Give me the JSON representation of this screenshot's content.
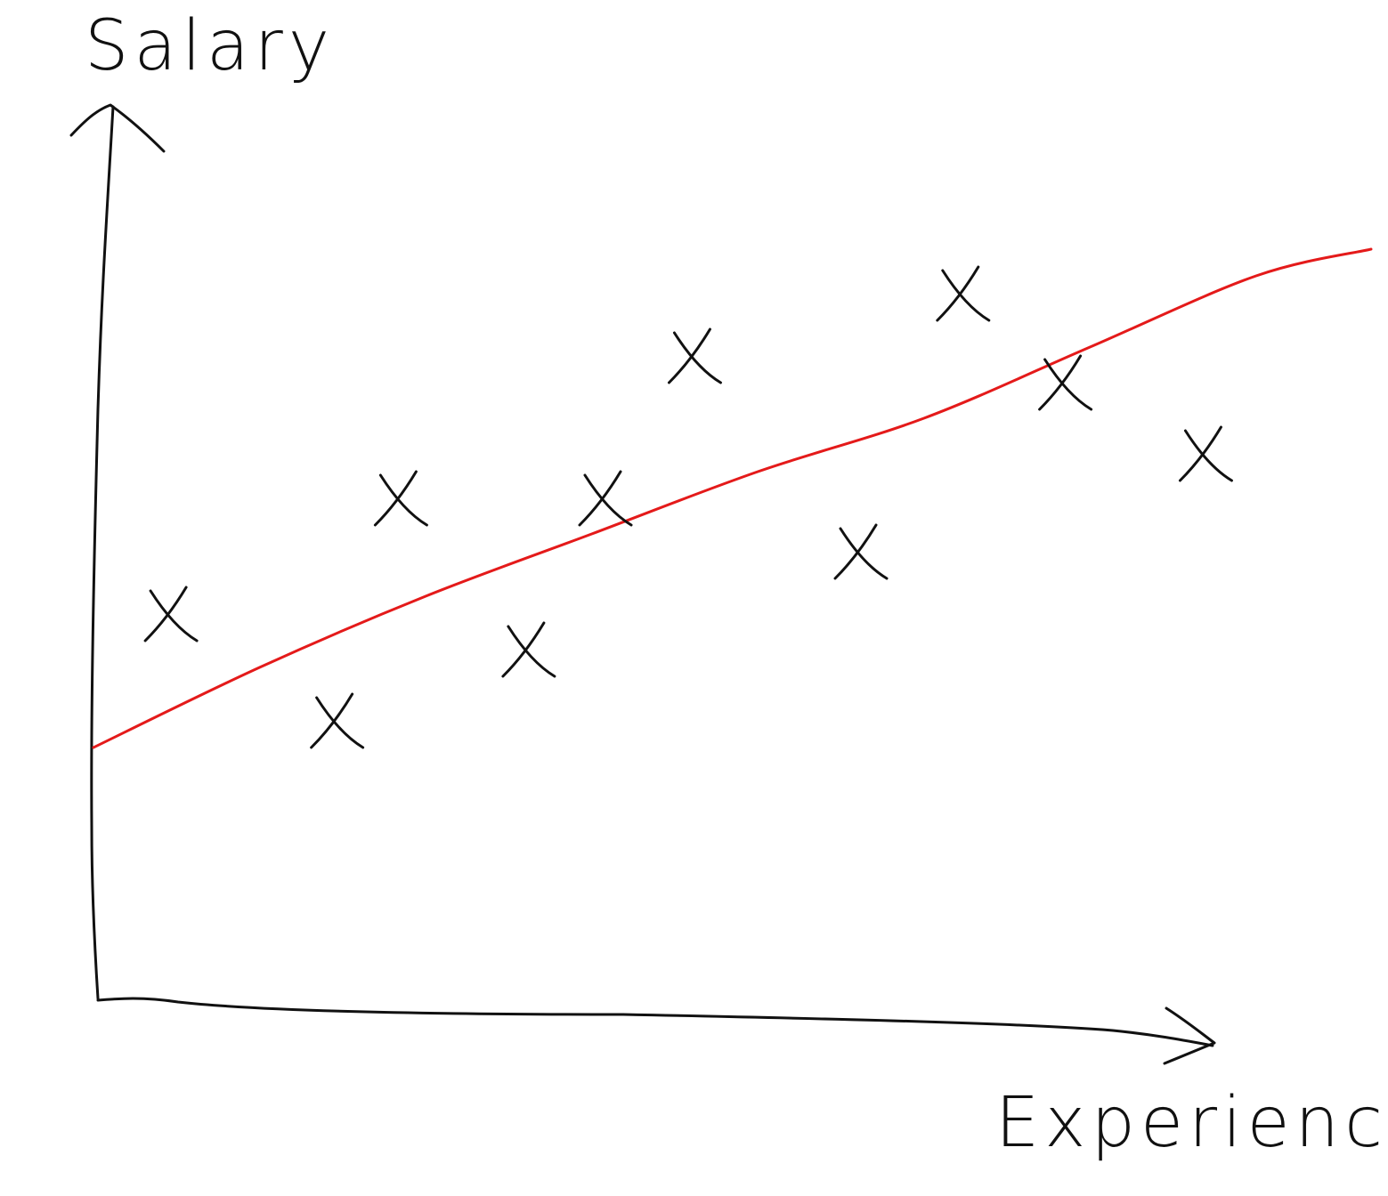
{
  "chart_data": {
    "type": "scatter",
    "title": "",
    "xlabel": "Experience",
    "ylabel": "Salary",
    "xlim": [
      0,
      10
    ],
    "ylim": [
      0,
      10
    ],
    "grid": false,
    "legend": "none",
    "series": [
      {
        "marker": "x",
        "x": [
          0.6,
          1.9,
          2.4,
          3.4,
          4.0,
          4.7,
          6.0,
          6.8,
          7.6,
          8.7
        ],
        "y": [
          4.3,
          3.1,
          5.6,
          3.9,
          5.6,
          7.2,
          5.0,
          7.9,
          6.9,
          6.1
        ]
      },
      {
        "kind": "trend-line",
        "color": "#e41a1a",
        "x": [
          0,
          1.3,
          2.6,
          3.9,
          5.2,
          6.5,
          7.8,
          9.1,
          10.0
        ],
        "y": [
          2.8,
          3.7,
          4.5,
          5.2,
          5.9,
          6.5,
          7.3,
          8.1,
          8.4
        ]
      }
    ]
  }
}
